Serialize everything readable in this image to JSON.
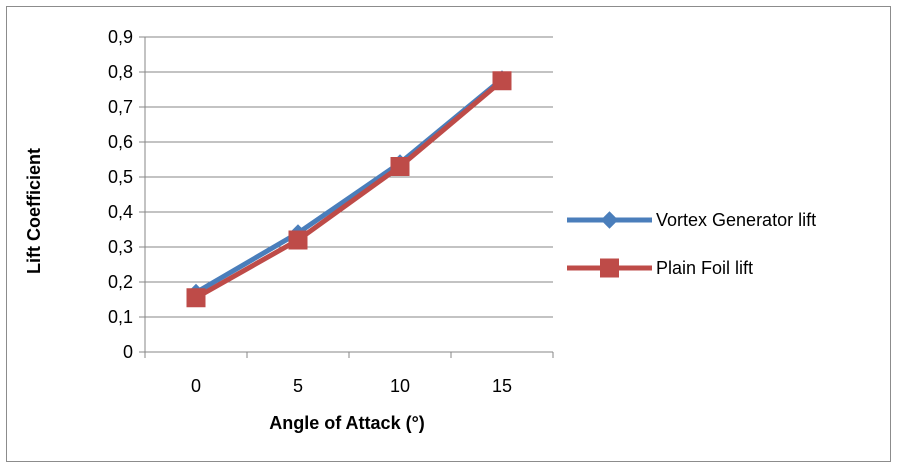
{
  "chart_data": {
    "type": "line",
    "title": "",
    "xlabel": "Angle of Attack (°)",
    "ylabel": "Lift Coefficient",
    "categories": [
      "0",
      "5",
      "10",
      "15"
    ],
    "y_ticks": [
      "0",
      "0,1",
      "0,2",
      "0,3",
      "0,4",
      "0,5",
      "0,6",
      "0,7",
      "0,8",
      "0,9"
    ],
    "ylim": [
      0,
      0.9
    ],
    "grid": true,
    "legend_position": "right",
    "series": [
      {
        "name": "Vortex Generator lift",
        "values": [
          0.17,
          0.34,
          0.54,
          0.78
        ],
        "color": "#4a7ebb",
        "marker": "diamond"
      },
      {
        "name": "Plain Foil lift",
        "values": [
          0.155,
          0.32,
          0.53,
          0.775
        ],
        "color": "#be4b48",
        "marker": "square"
      }
    ]
  }
}
